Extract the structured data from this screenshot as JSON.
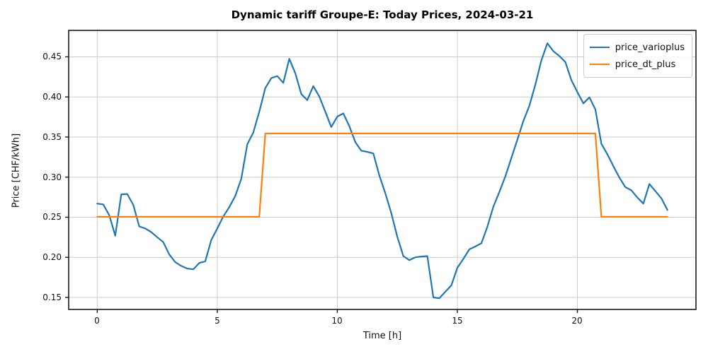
{
  "chart_data": {
    "type": "line",
    "title": "Dynamic tariff Groupe-E: Today Prices, 2024-03-21",
    "xlabel": "Time [h]",
    "ylabel": "Price [CHF/kWh]",
    "xlim": [
      -1.19,
      24.94
    ],
    "ylim": [
      0.135,
      0.483
    ],
    "xticks": [
      0,
      5,
      10,
      15,
      20
    ],
    "xtick_labels": [
      "0",
      "5",
      "10",
      "15",
      "20"
    ],
    "yticks": [
      0.15,
      0.2,
      0.25,
      0.3,
      0.35,
      0.4,
      0.45
    ],
    "ytick_labels": [
      "0.15",
      "0.20",
      "0.25",
      "0.30",
      "0.35",
      "0.40",
      "0.45"
    ],
    "grid": true,
    "grid_color": "#cccccc",
    "spine_color": "#1a1a1a",
    "legend_position": "upper right",
    "series": [
      {
        "name": "price_varioplus",
        "color": "#1f77b4",
        "line_width": 2.2,
        "x_start": 0,
        "x_step": 0.25,
        "values": [
          0.267,
          0.266,
          0.2525,
          0.227,
          0.2785,
          0.279,
          0.2655,
          0.2385,
          0.236,
          0.2315,
          0.225,
          0.219,
          0.2035,
          0.194,
          0.1893,
          0.186,
          0.185,
          0.193,
          0.195,
          0.2215,
          0.236,
          0.251,
          0.2625,
          0.2765,
          0.298,
          0.341,
          0.3555,
          0.3815,
          0.411,
          0.4235,
          0.426,
          0.4175,
          0.4475,
          0.4295,
          0.4035,
          0.396,
          0.4135,
          0.4005,
          0.3815,
          0.3625,
          0.3755,
          0.3795,
          0.3635,
          0.3435,
          0.333,
          0.3315,
          0.3295,
          0.302,
          0.28,
          0.255,
          0.2255,
          0.2015,
          0.1965,
          0.2,
          0.201,
          0.2015,
          0.15,
          0.149,
          0.157,
          0.165,
          0.187,
          0.198,
          0.21,
          0.2135,
          0.2175,
          0.238,
          0.263,
          0.2815,
          0.301,
          0.324,
          0.3465,
          0.37,
          0.389,
          0.4155,
          0.4455,
          0.467,
          0.457,
          0.451,
          0.4435,
          0.421,
          0.406,
          0.392,
          0.3995,
          0.3845,
          0.3415,
          0.3285,
          0.3135,
          0.2995,
          0.2875,
          0.2835,
          0.2745,
          0.267,
          0.2915,
          0.2825,
          0.2735,
          0.259
        ]
      },
      {
        "name": "price_dt_plus",
        "color": "#ff7f0e",
        "line_width": 2.2,
        "x": [
          0,
          6.75,
          7.0,
          20.75,
          21.0,
          23.75
        ],
        "values": [
          0.2505,
          0.2505,
          0.3545,
          0.3545,
          0.2505,
          0.2505
        ]
      }
    ]
  },
  "legend": {
    "items": [
      {
        "label": "price_varioplus",
        "color": "#1f77b4"
      },
      {
        "label": "price_dt_plus",
        "color": "#ff7f0e"
      }
    ]
  }
}
